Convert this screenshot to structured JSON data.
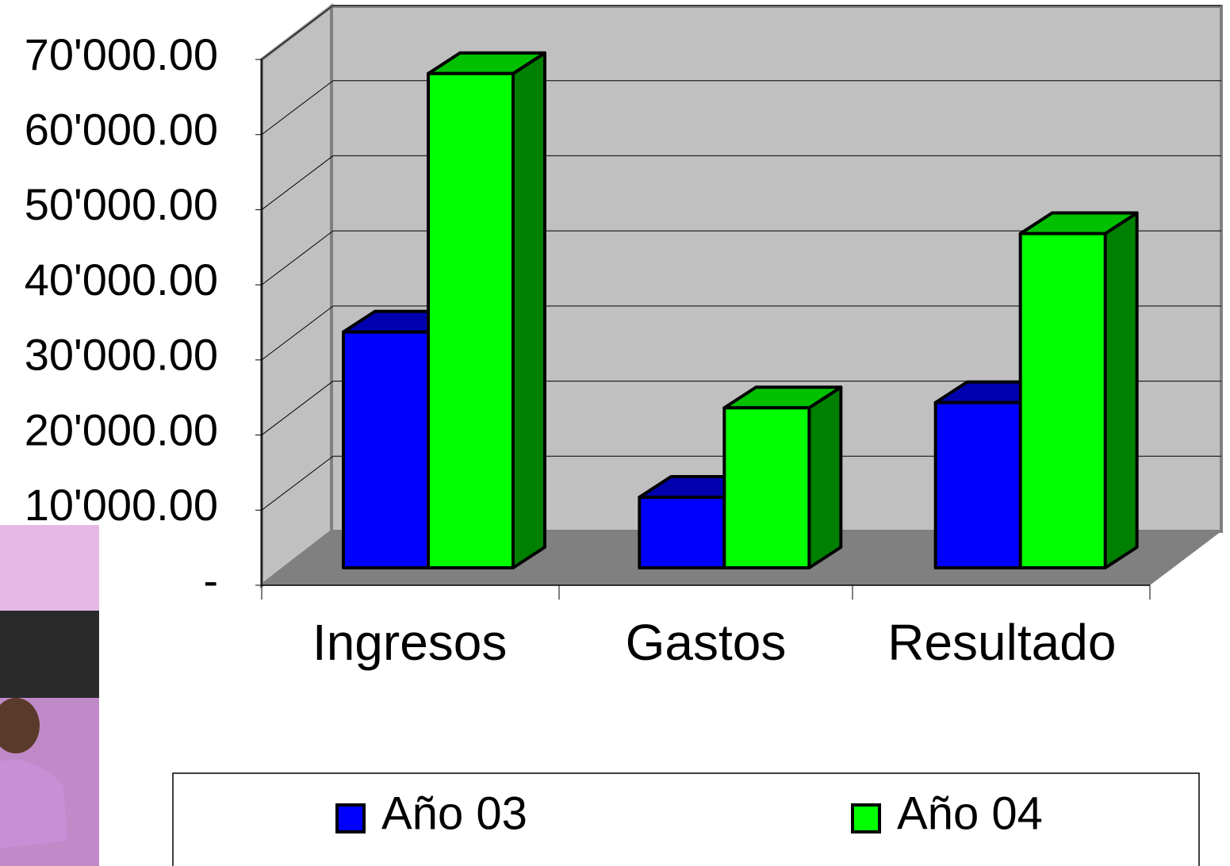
{
  "chart_data": {
    "type": "bar3d",
    "categories": [
      "Ingresos",
      "Gastos",
      "Resultado"
    ],
    "series": [
      {
        "name": "Año 03",
        "color": "#0000ff",
        "values": [
          31400,
          9400,
          22000
        ]
      },
      {
        "name": "Año 04",
        "color": "#00ff00",
        "values": [
          65800,
          21300,
          44500
        ]
      }
    ],
    "ylim": [
      0,
      70000
    ],
    "yticks": [
      {
        "value": 0,
        "label": "-"
      },
      {
        "value": 10000,
        "label": "10'000.00"
      },
      {
        "value": 20000,
        "label": "20'000.00"
      },
      {
        "value": 30000,
        "label": "30'000.00"
      },
      {
        "value": 40000,
        "label": "40'000.00"
      },
      {
        "value": 50000,
        "label": "50'000.00"
      },
      {
        "value": 60000,
        "label": "60'000.00"
      },
      {
        "value": 70000,
        "label": "70'000.00"
      }
    ],
    "grid": true,
    "legend": "bottom"
  }
}
